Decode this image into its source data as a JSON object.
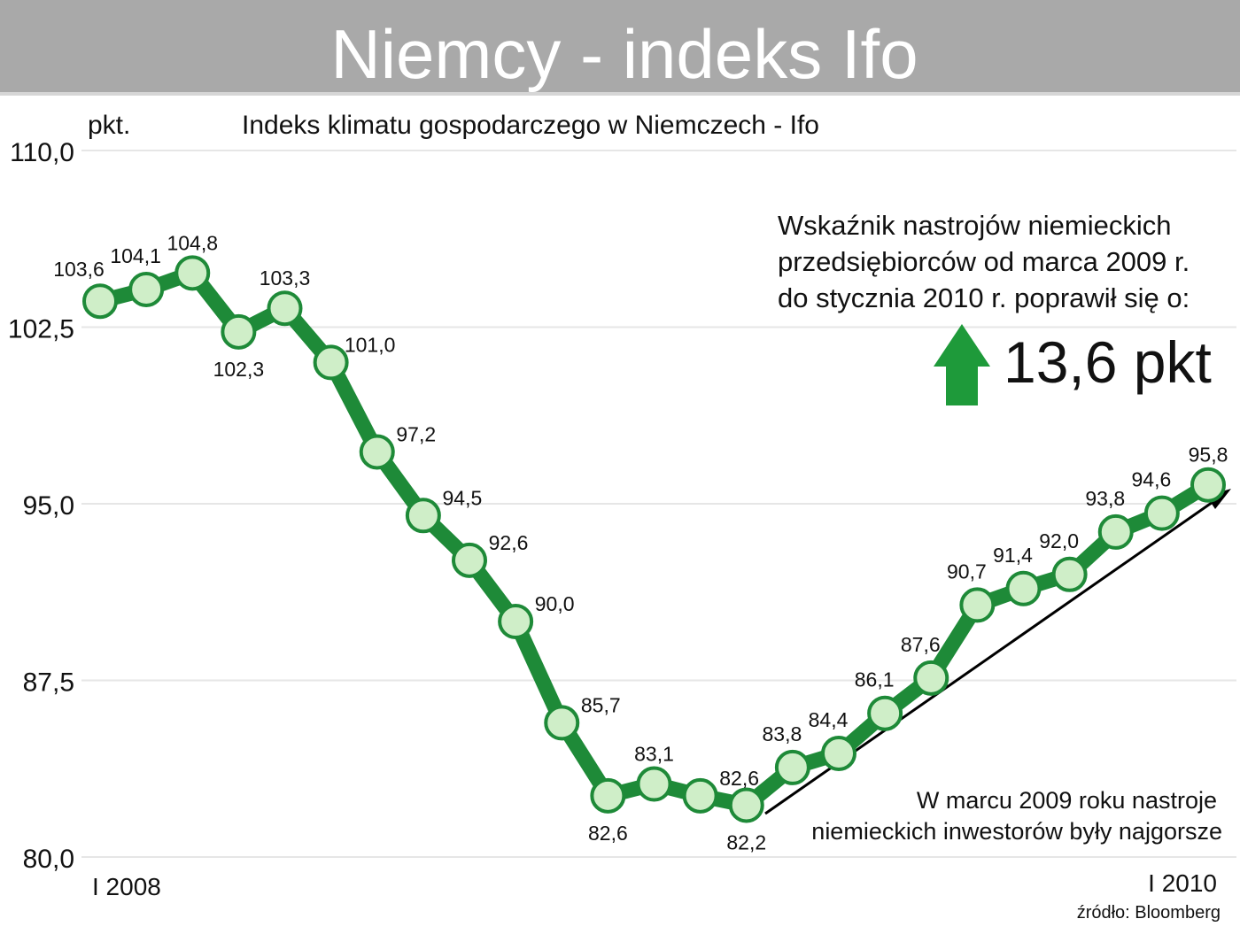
{
  "header": {
    "title": "Niemcy - indeks Ifo"
  },
  "chart_data": {
    "type": "line",
    "title": "Indeks klimatu gospodarczego w Niemczech - Ifo",
    "ylabel": "pkt.",
    "ylim": [
      80.0,
      110.0
    ],
    "yticks": [
      "80,0",
      "87,5",
      "95,0",
      "102,5",
      "110,0"
    ],
    "ytick_values": [
      80.0,
      87.5,
      95.0,
      102.5,
      110.0
    ],
    "x_start_label": "I 2008",
    "x_end_label": "I 2010",
    "grid": true,
    "series": [
      {
        "values": [
          103.6,
          104.1,
          104.8,
          102.3,
          103.3,
          101.0,
          97.2,
          94.5,
          92.6,
          90.0,
          85.7,
          82.6,
          83.1,
          82.6,
          82.2,
          83.8,
          84.4,
          86.1,
          87.6,
          90.7,
          91.4,
          92.0,
          93.8,
          94.6,
          95.8
        ],
        "labels": [
          "103,6",
          "104,1",
          "104,8",
          "102,3",
          "103,3",
          "101,0",
          "97,2",
          "94,5",
          "92,6",
          "90,0",
          "85,7",
          "82,6",
          "83,1",
          "82,6",
          "82,2",
          "83,8",
          "84,4",
          "86,1",
          "87,6",
          "90,7",
          "91,4",
          "92,0",
          "93,8",
          "94,6",
          "95,8"
        ]
      }
    ],
    "annotations": {
      "improvement_text": [
        "Wskaźnik nastrojów niemieckich",
        "przedsiębiorców od marca 2009 r.",
        "do stycznia 2010 r. poprawił się o:"
      ],
      "improvement_value": "13,6 pkt",
      "low_text": [
        "W marcu 2009 roku nastroje",
        "niemieckich inwestorów były najgorsze"
      ]
    },
    "source": "źródło: Bloomberg",
    "colors": {
      "line": "#1e8a38",
      "marker_fill": "#cfeec8",
      "marker_stroke": "#1e8a38",
      "arrow_up": "#1e9a3a",
      "header_bg": "#a9a9a9",
      "trend_arrow": "#000000"
    }
  }
}
